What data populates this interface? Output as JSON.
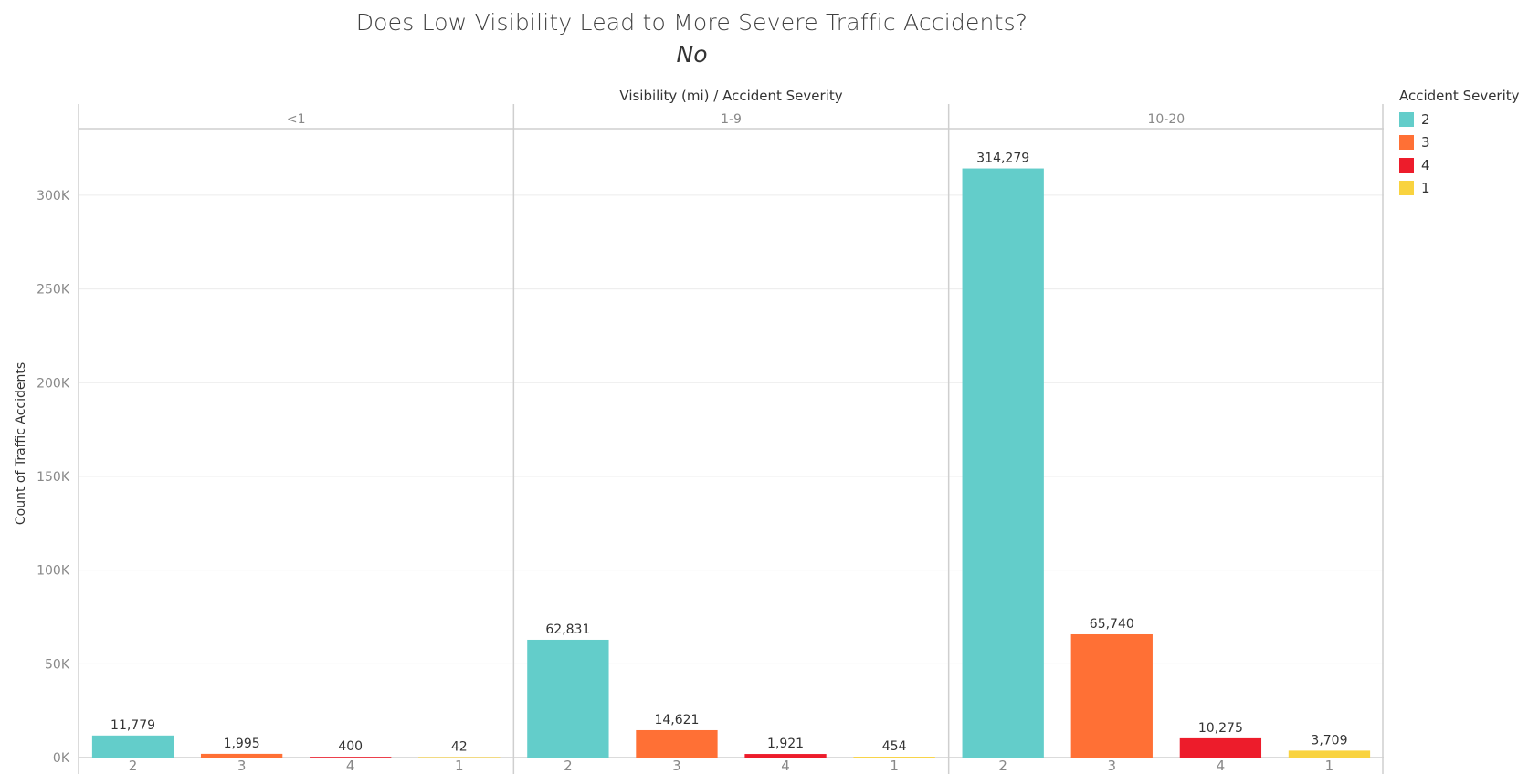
{
  "title": "Does Low Visibility Lead to More Severe Traffic Accidents?",
  "subtitle": "No",
  "chart_data": {
    "type": "bar",
    "title": "Does Low Visibility Lead to More Severe Traffic Accidents?",
    "subtitle": "No",
    "column_header": "Visibility (mi)  /  Accident Severity",
    "ylabel": "Count of Traffic Accidents",
    "ylim": [
      0,
      335000
    ],
    "yticks": [
      0,
      50000,
      100000,
      150000,
      200000,
      250000,
      300000
    ],
    "ytick_labels": [
      "0K",
      "50K",
      "100K",
      "150K",
      "200K",
      "250K",
      "300K"
    ],
    "grid": true,
    "legend_position": "top-right",
    "panels": [
      {
        "label": "<1",
        "bars": [
          {
            "category": "2",
            "value": 11779,
            "label": "11,779"
          },
          {
            "category": "3",
            "value": 1995,
            "label": "1,995"
          },
          {
            "category": "4",
            "value": 400,
            "label": "400"
          },
          {
            "category": "1",
            "value": 42,
            "label": "42"
          }
        ]
      },
      {
        "label": "1-9",
        "bars": [
          {
            "category": "2",
            "value": 62831,
            "label": "62,831"
          },
          {
            "category": "3",
            "value": 14621,
            "label": "14,621"
          },
          {
            "category": "4",
            "value": 1921,
            "label": "1,921"
          },
          {
            "category": "1",
            "value": 454,
            "label": "454"
          }
        ]
      },
      {
        "label": "10-20",
        "bars": [
          {
            "category": "2",
            "value": 314279,
            "label": "314,279"
          },
          {
            "category": "3",
            "value": 65740,
            "label": "65,740"
          },
          {
            "category": "4",
            "value": 10275,
            "label": "10,275"
          },
          {
            "category": "1",
            "value": 3709,
            "label": "3,709"
          }
        ]
      }
    ],
    "legend": {
      "title": "Accident Severity",
      "items": [
        {
          "label": "2",
          "color": "#63cdca"
        },
        {
          "label": "3",
          "color": "#ff7035"
        },
        {
          "label": "4",
          "color": "#ed1c2b"
        },
        {
          "label": "1",
          "color": "#f9d33f"
        }
      ]
    }
  }
}
